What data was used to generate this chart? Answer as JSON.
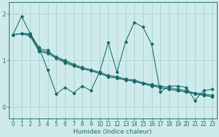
{
  "xlabel": "Humidex (Indice chaleur)",
  "ylabel": "",
  "background_color": "#ceeaea",
  "line_color": "#1a6b6b",
  "grid_color": "#aed4d4",
  "xlim": [
    -0.5,
    23.5
  ],
  "ylim": [
    -0.25,
    2.25
  ],
  "xticks": [
    0,
    1,
    2,
    3,
    4,
    5,
    6,
    7,
    8,
    9,
    10,
    11,
    12,
    13,
    14,
    15,
    16,
    17,
    18,
    19,
    20,
    21,
    22,
    23
  ],
  "yticks": [
    0,
    1,
    2
  ],
  "series": [
    [
      1.55,
      1.95,
      1.58,
      1.28,
      0.8,
      0.28,
      0.42,
      0.3,
      0.45,
      0.35,
      0.75,
      1.38,
      0.75,
      1.4,
      1.82,
      1.72,
      1.35,
      0.32,
      0.45,
      0.45,
      0.42,
      0.14,
      0.35,
      0.38
    ],
    [
      1.55,
      1.58,
      1.58,
      1.25,
      1.22,
      1.05,
      0.95,
      0.88,
      0.82,
      0.78,
      0.72,
      0.65,
      0.62,
      0.58,
      0.55,
      0.5,
      0.45,
      0.42,
      0.38,
      0.35,
      0.32,
      0.28,
      0.25,
      0.22
    ],
    [
      1.55,
      1.58,
      1.55,
      1.22,
      1.18,
      1.08,
      1.0,
      0.92,
      0.85,
      0.8,
      0.75,
      0.68,
      0.65,
      0.6,
      0.58,
      0.52,
      0.48,
      0.45,
      0.42,
      0.38,
      0.35,
      0.3,
      0.28,
      0.25
    ],
    [
      1.55,
      1.58,
      1.52,
      1.2,
      1.15,
      1.05,
      0.98,
      0.9,
      0.82,
      0.78,
      0.72,
      0.65,
      0.62,
      0.58,
      0.55,
      0.5,
      0.46,
      0.42,
      0.38,
      0.35,
      0.32,
      0.28,
      0.25,
      0.22
    ]
  ]
}
